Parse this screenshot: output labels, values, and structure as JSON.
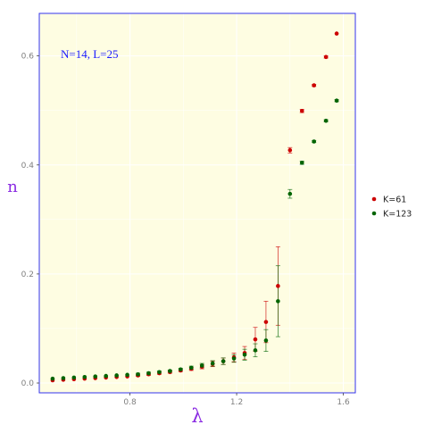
{
  "chart_data": {
    "type": "scatter",
    "title": "",
    "xlabel": "λ",
    "ylabel": "n",
    "annotation": "N=14, L=25",
    "xlim": [
      0.46,
      1.645
    ],
    "ylim": [
      -0.018,
      0.678
    ],
    "x_ticks": [
      0.8,
      1.2,
      1.6
    ],
    "x_tick_labels": [
      "0.8",
      "1.2",
      "1.6"
    ],
    "y_ticks": [
      0.0,
      0.2,
      0.4,
      0.6
    ],
    "y_tick_labels": [
      "0.0",
      "0.2",
      "0.4",
      "0.6"
    ],
    "grid": true,
    "legend_placement": "right",
    "x": [
      0.51,
      0.55,
      0.59,
      0.63,
      0.67,
      0.71,
      0.75,
      0.79,
      0.83,
      0.87,
      0.91,
      0.95,
      0.99,
      1.03,
      1.07,
      1.11,
      1.15,
      1.19,
      1.23,
      1.27,
      1.31,
      1.355,
      1.4,
      1.445,
      1.49,
      1.535,
      1.575
    ],
    "series": [
      {
        "name": "K=61",
        "color": "#cc0000",
        "values": [
          0.005,
          0.006,
          0.007,
          0.008,
          0.009,
          0.01,
          0.011,
          0.012,
          0.014,
          0.016,
          0.018,
          0.02,
          0.023,
          0.026,
          0.03,
          0.035,
          0.04,
          0.047,
          0.055,
          0.08,
          0.112,
          0.178,
          0.427,
          0.499,
          0.546,
          0.598,
          0.641
        ],
        "errors": [
          0.001,
          0.001,
          0.001,
          0.001,
          0.001,
          0.001,
          0.001,
          0.001,
          0.002,
          0.002,
          0.002,
          0.002,
          0.002,
          0.003,
          0.004,
          0.005,
          0.006,
          0.008,
          0.012,
          0.022,
          0.038,
          0.072,
          0.005,
          0.003,
          0.002,
          0.002,
          0.001
        ]
      },
      {
        "name": "K=123",
        "color": "#006400",
        "values": [
          0.008,
          0.009,
          0.01,
          0.011,
          0.012,
          0.013,
          0.014,
          0.015,
          0.016,
          0.018,
          0.02,
          0.022,
          0.025,
          0.028,
          0.032,
          0.036,
          0.04,
          0.045,
          0.052,
          0.06,
          0.078,
          0.15,
          0.347,
          0.404,
          0.443,
          0.481,
          0.518
        ],
        "errors": [
          0.001,
          0.001,
          0.001,
          0.001,
          0.001,
          0.001,
          0.001,
          0.001,
          0.002,
          0.002,
          0.002,
          0.002,
          0.002,
          0.003,
          0.004,
          0.005,
          0.006,
          0.007,
          0.01,
          0.012,
          0.02,
          0.065,
          0.008,
          0.003,
          0.002,
          0.002,
          0.002
        ]
      }
    ],
    "colors": {
      "panel_background": "#fefde2",
      "panel_border": "#3333ee",
      "grid": "#ffffff",
      "axis_title": "#8a2be2",
      "annotation": "#1a1aff"
    }
  }
}
